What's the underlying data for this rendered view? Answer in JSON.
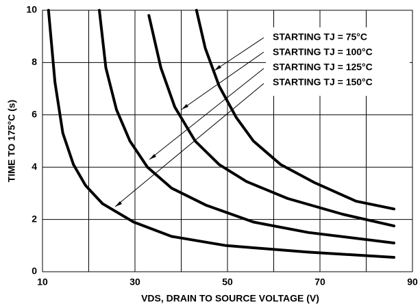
{
  "chart_data": {
    "type": "line",
    "xlabel": "VDS, DRAIN TO SOURCE VOLTAGE (V)",
    "ylabel": "TIME TO 175°C (s)",
    "xlim": [
      10,
      90
    ],
    "ylim": [
      0,
      10
    ],
    "xticks": [
      10,
      30,
      50,
      70,
      90
    ],
    "x_minor_grid": [
      20,
      40,
      60,
      80
    ],
    "yticks": [
      0,
      2,
      4,
      6,
      8,
      10
    ],
    "grid": true,
    "series": [
      {
        "name": "STARTING TJ = 75°C",
        "color": "#000000",
        "x": [
          43.3,
          45.2,
          48.2,
          51.9,
          55.6,
          61.5,
          68.9,
          77.8,
          86
        ],
        "values": [
          10,
          8.55,
          7.1,
          5.9,
          5.0,
          4.1,
          3.4,
          2.7,
          2.4
        ]
      },
      {
        "name": "STARTING TJ = 100°C",
        "color": "#000000",
        "x": [
          33,
          35.6,
          38.6,
          43,
          48.2,
          54.1,
          63,
          74.9,
          86
        ],
        "values": [
          9.8,
          7.8,
          6.3,
          5.0,
          4.1,
          3.45,
          2.8,
          2.2,
          1.75
        ]
      },
      {
        "name": "STARTING TJ = 125°C",
        "color": "#000000",
        "x": [
          22.3,
          23.7,
          26,
          28.9,
          32.7,
          37.9,
          45.3,
          55.6,
          67.5,
          86
        ],
        "values": [
          10,
          7.8,
          6.2,
          5.0,
          4.0,
          3.2,
          2.55,
          1.9,
          1.5,
          1.1
        ]
      },
      {
        "name": "STARTING TJ = 150°C",
        "color": "#000000",
        "x": [
          11.3,
          12.7,
          14.4,
          16.7,
          19.3,
          23,
          29.7,
          37.9,
          49.7,
          67.5,
          86
        ],
        "values": [
          10,
          7.25,
          5.3,
          4.1,
          3.3,
          2.6,
          1.9,
          1.35,
          1.0,
          0.75,
          0.55
        ]
      }
    ]
  }
}
